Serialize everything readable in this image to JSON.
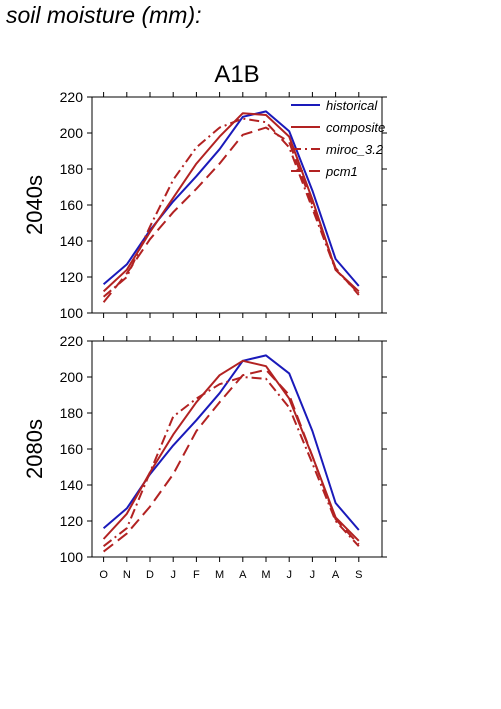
{
  "page": {
    "title": "soil moisture (mm):"
  },
  "chart_data": {
    "type": "line",
    "title": "A1B",
    "categories": [
      "O",
      "N",
      "D",
      "J",
      "F",
      "M",
      "A",
      "M",
      "J",
      "J",
      "A",
      "S"
    ],
    "ylim": [
      100,
      220
    ],
    "yticks": [
      100,
      120,
      140,
      160,
      180,
      200,
      220
    ],
    "legend": {
      "placement": "top-right"
    },
    "series_styles": [
      {
        "name": "historical",
        "color": "#1a1aba",
        "dash": ""
      },
      {
        "name": "composite",
        "color": "#b22222",
        "dash": ""
      },
      {
        "name": "miroc_3.2",
        "color": "#b22222",
        "dash": "10 4 2 4"
      },
      {
        "name": "pcm1",
        "color": "#b22222",
        "dash": "12 6"
      }
    ],
    "panels": [
      {
        "ylabel": "2040s",
        "series": [
          {
            "name": "historical",
            "values": [
              116,
              127,
              146,
              162,
              176,
              191,
              209,
              212,
              201,
              168,
              130,
              115
            ]
          },
          {
            "name": "composite",
            "values": [
              112,
              124,
              145,
              164,
              183,
              198,
              211,
              210,
              198,
              163,
              124,
              112
            ]
          },
          {
            "name": "miroc_3.2",
            "values": [
              109,
              120,
              148,
              174,
              192,
              203,
              208,
              206,
              192,
              158,
              124,
              111
            ]
          },
          {
            "name": "pcm1",
            "values": [
              106,
              122,
              141,
              156,
              169,
              183,
              199,
              203,
              195,
              160,
              125,
              110
            ]
          }
        ]
      },
      {
        "ylabel": "2080s",
        "series": [
          {
            "name": "historical",
            "values": [
              116,
              127,
              146,
              162,
              176,
              191,
              209,
              212,
              202,
              170,
              130,
              115
            ]
          },
          {
            "name": "composite",
            "values": [
              110,
              124,
              147,
              168,
              186,
              201,
              209,
              206,
              188,
              156,
              122,
              109
            ]
          },
          {
            "name": "miroc_3.2",
            "values": [
              106,
              116,
              147,
              178,
              188,
              196,
              200,
              199,
              183,
              152,
              120,
              106
            ]
          },
          {
            "name": "pcm1",
            "values": [
              103,
              113,
              128,
              146,
              170,
              186,
              201,
              204,
              190,
              156,
              121,
              107
            ]
          }
        ]
      }
    ]
  }
}
